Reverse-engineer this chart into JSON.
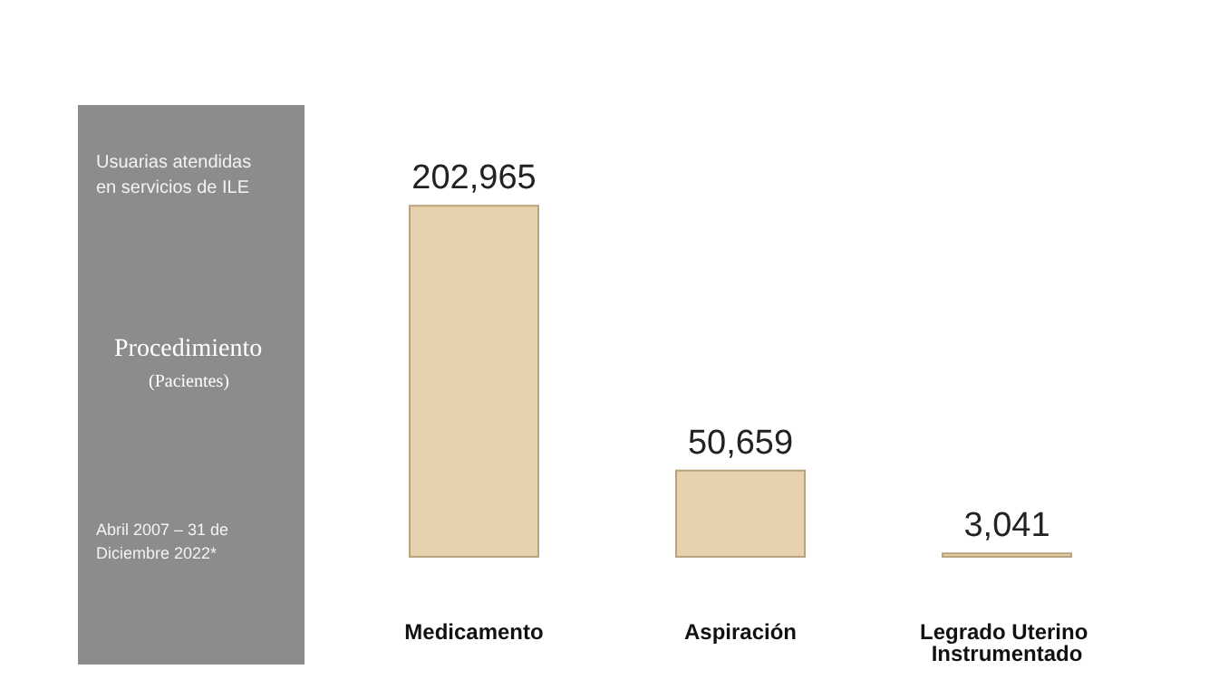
{
  "chart_data": {
    "type": "bar",
    "title": "Procedimiento",
    "subtitle": "(Pacientes)",
    "annotations": [
      "Usuarias atendidas en servicios de ILE",
      "Abril 2007 – 31 de Diciembre 2022*"
    ],
    "categories": [
      "Medicamento",
      "Aspiración",
      "Legrado Uterino Instrumentado"
    ],
    "values": [
      202965,
      50659,
      3041
    ],
    "value_labels": [
      "202,965",
      "50,659",
      "3,041"
    ],
    "color": "#e6d3ad"
  }
}
